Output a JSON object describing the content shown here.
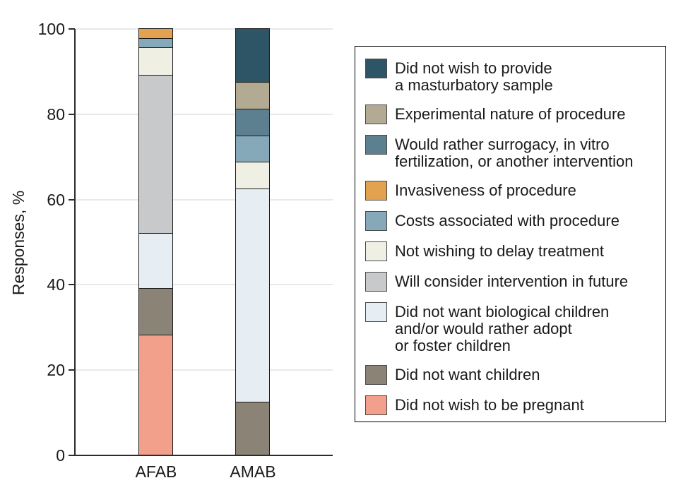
{
  "chart_data": {
    "type": "bar",
    "stacked": true,
    "title": "",
    "xlabel": "",
    "ylabel": "Responses, %",
    "ylim": [
      0,
      100
    ],
    "yticks": [
      0,
      20,
      40,
      60,
      80,
      100
    ],
    "grid": true,
    "legend_position": "right",
    "categories": [
      "AFAB",
      "AMAB"
    ],
    "series": [
      {
        "name": "Did not wish to provide a masturbatory sample",
        "legend_label": "Did not wish to provide\na masturbatory sample",
        "color": "#2E5565",
        "values": [
          0,
          12.5
        ]
      },
      {
        "name": "Experimental nature of procedure",
        "legend_label": "Experimental nature of procedure",
        "color": "#B3AA94",
        "values": [
          0,
          6.25
        ]
      },
      {
        "name": "Would rather surrogacy, in vitro fertilization, or another intervention",
        "legend_label": "Would rather surrogacy, in vitro\nfertilization, or another intervention",
        "color": "#5C8090",
        "values": [
          0,
          6.25
        ]
      },
      {
        "name": "Invasiveness of procedure",
        "legend_label": "Invasiveness of procedure",
        "color": "#E3A24F",
        "values": [
          2.2,
          0
        ]
      },
      {
        "name": "Costs associated with procedure",
        "legend_label": "Costs associated with procedure",
        "color": "#86A9BA",
        "values": [
          2.2,
          6.25
        ]
      },
      {
        "name": "Not wishing to delay treatment",
        "legend_label": "Not wishing to delay treatment",
        "color": "#F0EFE3",
        "values": [
          6.5,
          6.25
        ]
      },
      {
        "name": "Will consider intervention in future",
        "legend_label": "Will consider intervention in future",
        "color": "#C8C9CB",
        "values": [
          37,
          0
        ]
      },
      {
        "name": "Did not want biological children and/or would rather adopt or foster children",
        "legend_label": "Did not want biological children\nand/or would rather adopt\nor foster children",
        "color": "#E7EEF3",
        "values": [
          13,
          50
        ]
      },
      {
        "name": "Did not want children",
        "legend_label": "Did not want children",
        "color": "#8B8476",
        "values": [
          10.9,
          12.5
        ]
      },
      {
        "name": "Did not wish to be pregnant",
        "legend_label": "Did not wish to be pregnant",
        "color": "#F29F8B",
        "values": [
          28.2,
          0
        ]
      }
    ],
    "colors": {
      "axis": "#2B2B2B",
      "gridline": "#E9E9E9",
      "text": "#1A1A1A",
      "segment_border": "#1A1A1A",
      "legend_border": "#000000",
      "swatch_border": "#4A4A4A",
      "background": "#FFFFFF"
    }
  }
}
